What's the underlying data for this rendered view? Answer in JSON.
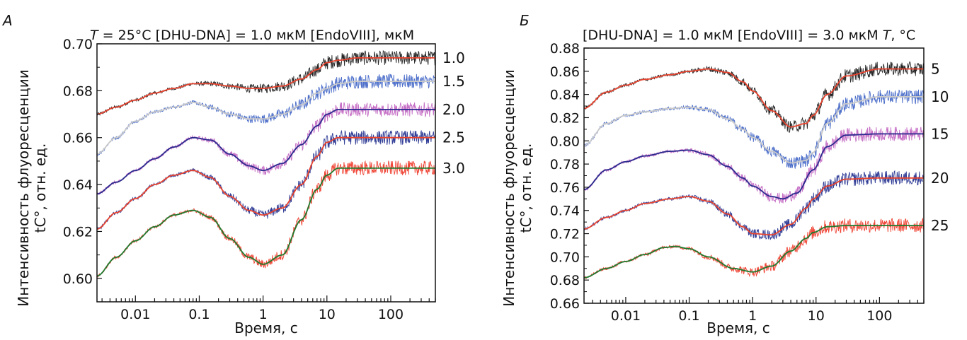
{
  "chart_data": [
    {
      "panel": "А",
      "type": "line",
      "condition_T_prefix": "T",
      "condition_rest": " = 25°C [DHU-DNA] = 1.0 мкМ [EndoVIII], мкМ",
      "xlabel": "Время, с",
      "ylabel_line1": "Интенсивность флуоресценции",
      "ylabel_line2": "tC°, отн. ед.",
      "x_scale": "log",
      "xlim": [
        0.0025,
        500
      ],
      "ylim": [
        0.59,
        0.7
      ],
      "x_ticks": [
        {
          "v": 0.01,
          "label": "0.01"
        },
        {
          "v": 0.1,
          "label": "0.1"
        },
        {
          "v": 1,
          "label": "1"
        },
        {
          "v": 10,
          "label": "10"
        },
        {
          "v": 100,
          "label": "100"
        }
      ],
      "y_ticks": [
        {
          "v": 0.6,
          "label": "0.60"
        },
        {
          "v": 0.62,
          "label": "0.62"
        },
        {
          "v": 0.64,
          "label": "0.64"
        },
        {
          "v": 0.66,
          "label": "0.66"
        },
        {
          "v": 0.68,
          "label": "0.68"
        },
        {
          "v": 0.7,
          "label": "0.70"
        }
      ],
      "grid": false,
      "series": [
        {
          "name": "1.0",
          "data_color": "#111111",
          "fit_color": "#e8432e",
          "x": [
            0.0025,
            0.005,
            0.01,
            0.02,
            0.04,
            0.08,
            0.15,
            0.3,
            0.6,
            1,
            2,
            4,
            7,
            10,
            15,
            30,
            100,
            500
          ],
          "y": [
            0.67,
            0.673,
            0.676,
            0.679,
            0.681,
            0.683,
            0.683,
            0.682,
            0.681,
            0.681,
            0.682,
            0.685,
            0.689,
            0.692,
            0.693,
            0.694,
            0.694,
            0.694
          ]
        },
        {
          "name": "1.5",
          "data_color": "#3a5fc4",
          "fit_color": "#c9c9c9",
          "x": [
            0.0025,
            0.005,
            0.01,
            0.02,
            0.04,
            0.08,
            0.15,
            0.3,
            0.6,
            1,
            2,
            4,
            7,
            10,
            15,
            30,
            100,
            500
          ],
          "y": [
            0.653,
            0.66,
            0.667,
            0.671,
            0.673,
            0.675,
            0.673,
            0.67,
            0.668,
            0.668,
            0.67,
            0.674,
            0.679,
            0.681,
            0.683,
            0.684,
            0.684,
            0.684
          ]
        },
        {
          "name": "2.0",
          "data_color": "#c060c0",
          "fit_color": "#2a2a8e",
          "x": [
            0.0025,
            0.005,
            0.01,
            0.02,
            0.04,
            0.08,
            0.15,
            0.3,
            0.6,
            1,
            2,
            4,
            7,
            10,
            15,
            30,
            100,
            500
          ],
          "y": [
            0.636,
            0.641,
            0.646,
            0.651,
            0.656,
            0.66,
            0.659,
            0.653,
            0.648,
            0.646,
            0.649,
            0.657,
            0.665,
            0.67,
            0.672,
            0.672,
            0.672,
            0.672
          ]
        },
        {
          "name": "2.5",
          "data_color": "#1c2a8c",
          "fit_color": "#e8432e",
          "x": [
            0.0025,
            0.005,
            0.01,
            0.02,
            0.04,
            0.08,
            0.15,
            0.3,
            0.6,
            1,
            2,
            4,
            7,
            10,
            15,
            30,
            100,
            500
          ],
          "y": [
            0.621,
            0.628,
            0.634,
            0.64,
            0.644,
            0.646,
            0.643,
            0.635,
            0.629,
            0.627,
            0.63,
            0.64,
            0.652,
            0.658,
            0.66,
            0.66,
            0.66,
            0.66
          ]
        },
        {
          "name": "3.0",
          "data_color": "#ee3322",
          "fit_color": "#1e7a2e",
          "x": [
            0.0025,
            0.005,
            0.01,
            0.02,
            0.04,
            0.08,
            0.15,
            0.3,
            0.6,
            1,
            2,
            4,
            7,
            10,
            15,
            30,
            100,
            500
          ],
          "y": [
            0.601,
            0.609,
            0.616,
            0.622,
            0.627,
            0.629,
            0.626,
            0.617,
            0.609,
            0.606,
            0.61,
            0.625,
            0.638,
            0.644,
            0.647,
            0.647,
            0.647,
            0.647
          ]
        }
      ]
    },
    {
      "panel": "Б",
      "type": "line",
      "condition_main": "[DHU-DNA] = 1.0 мкМ [EndoVIII] = 3.0 мкМ ",
      "condition_T_prefix": "T",
      "condition_T_suffix": ", °C",
      "xlabel": "Время, с",
      "ylabel_line1": "Интенсивность флуоресценции",
      "ylabel_line2": "tC°, отн. ед.",
      "x_scale": "log",
      "xlim": [
        0.0022,
        500
      ],
      "ylim": [
        0.66,
        0.88
      ],
      "x_ticks": [
        {
          "v": 0.01,
          "label": "0.01"
        },
        {
          "v": 0.1,
          "label": "0.1"
        },
        {
          "v": 1,
          "label": "1"
        },
        {
          "v": 10,
          "label": "10"
        },
        {
          "v": 100,
          "label": "100"
        }
      ],
      "y_ticks": [
        {
          "v": 0.66,
          "label": "0.66"
        },
        {
          "v": 0.68,
          "label": "0.68"
        },
        {
          "v": 0.7,
          "label": "0.70"
        },
        {
          "v": 0.72,
          "label": "0.72"
        },
        {
          "v": 0.74,
          "label": "0.74"
        },
        {
          "v": 0.76,
          "label": "0.76"
        },
        {
          "v": 0.78,
          "label": "0.78"
        },
        {
          "v": 0.8,
          "label": "0.80"
        },
        {
          "v": 0.82,
          "label": "0.82"
        },
        {
          "v": 0.84,
          "label": "0.84"
        },
        {
          "v": 0.86,
          "label": "0.86"
        },
        {
          "v": 0.88,
          "label": "0.88"
        }
      ],
      "grid": false,
      "series": [
        {
          "name": "5",
          "data_color": "#111111",
          "fit_color": "#e8432e",
          "x": [
            0.0022,
            0.005,
            0.01,
            0.02,
            0.05,
            0.1,
            0.2,
            0.4,
            0.7,
            1,
            2,
            4,
            7,
            9,
            15,
            30,
            100,
            500
          ],
          "y": [
            0.828,
            0.842,
            0.848,
            0.853,
            0.857,
            0.86,
            0.862,
            0.859,
            0.851,
            0.843,
            0.826,
            0.812,
            0.815,
            0.822,
            0.84,
            0.856,
            0.862,
            0.862
          ]
        },
        {
          "name": "10",
          "data_color": "#3a5fc4",
          "fit_color": "#c9c9c9",
          "x": [
            0.0022,
            0.005,
            0.01,
            0.02,
            0.05,
            0.1,
            0.2,
            0.4,
            0.7,
            1,
            2,
            4,
            7,
            9,
            15,
            30,
            100,
            500
          ],
          "y": [
            0.796,
            0.815,
            0.822,
            0.825,
            0.828,
            0.829,
            0.827,
            0.819,
            0.81,
            0.803,
            0.791,
            0.781,
            0.783,
            0.79,
            0.815,
            0.832,
            0.838,
            0.838
          ]
        },
        {
          "name": "15",
          "data_color": "#c060c0",
          "fit_color": "#2a2a8e",
          "x": [
            0.0022,
            0.005,
            0.01,
            0.02,
            0.05,
            0.1,
            0.2,
            0.4,
            0.7,
            1,
            2,
            3,
            5,
            9,
            15,
            30,
            100,
            500
          ],
          "y": [
            0.758,
            0.775,
            0.782,
            0.787,
            0.791,
            0.792,
            0.788,
            0.778,
            0.768,
            0.761,
            0.752,
            0.75,
            0.755,
            0.775,
            0.795,
            0.805,
            0.806,
            0.806
          ]
        },
        {
          "name": "20",
          "data_color": "#1c2a8c",
          "fit_color": "#e8432e",
          "x": [
            0.0022,
            0.005,
            0.01,
            0.02,
            0.05,
            0.1,
            0.2,
            0.4,
            0.7,
            1,
            2,
            4,
            7,
            9,
            15,
            30,
            100,
            500
          ],
          "y": [
            0.724,
            0.734,
            0.74,
            0.746,
            0.75,
            0.752,
            0.748,
            0.737,
            0.726,
            0.72,
            0.719,
            0.728,
            0.742,
            0.75,
            0.761,
            0.767,
            0.768,
            0.768
          ]
        },
        {
          "name": "25",
          "data_color": "#ee3322",
          "fit_color": "#1e7a2e",
          "x": [
            0.0022,
            0.005,
            0.01,
            0.02,
            0.04,
            0.06,
            0.1,
            0.2,
            0.5,
            1,
            2,
            4,
            7,
            9,
            15,
            30,
            100,
            500
          ],
          "y": [
            0.682,
            0.69,
            0.696,
            0.702,
            0.708,
            0.709,
            0.707,
            0.7,
            0.69,
            0.687,
            0.692,
            0.705,
            0.716,
            0.721,
            0.726,
            0.727,
            0.727,
            0.727
          ]
        }
      ]
    }
  ]
}
